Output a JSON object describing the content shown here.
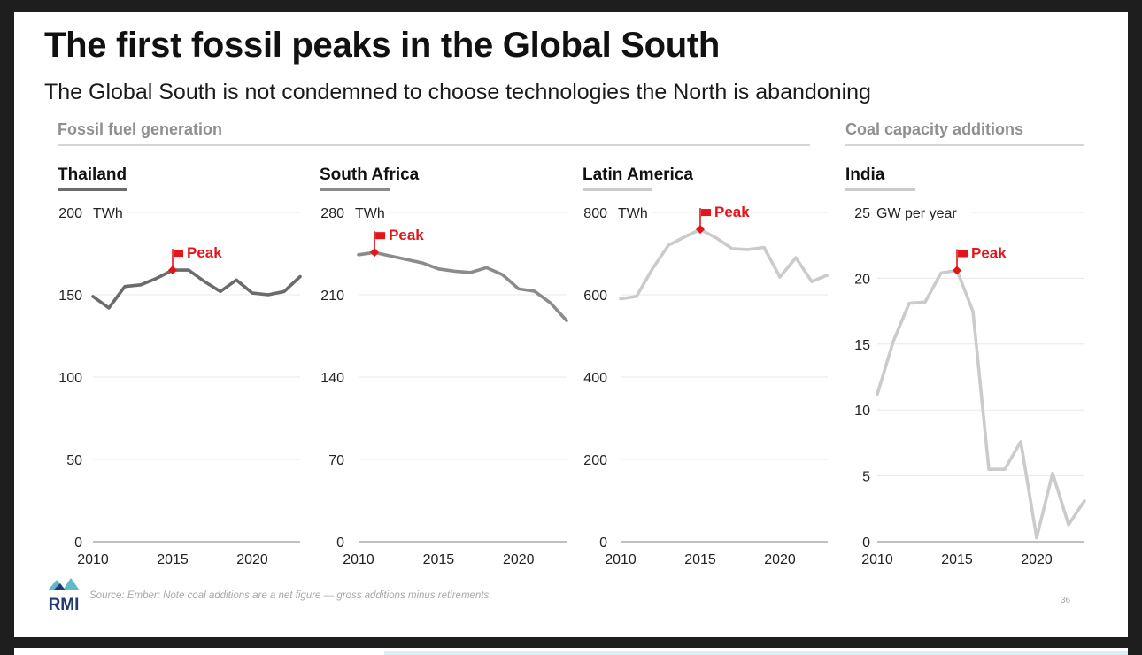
{
  "title": "The first fossil peaks in the Global South",
  "subtitle": "The Global South is not condemned to choose technologies the North is abandoning",
  "sections": {
    "fossil": "Fossil fuel generation",
    "coal": "Coal capacity additions"
  },
  "source": "Source: Ember; Note coal additions are a net figure — gross additions minus retirements.",
  "page_number": "36",
  "logo_text": "RMI",
  "colors": {
    "peak": "#e3151b",
    "dark": "#6b6b6b",
    "mid": "#8b8b8b",
    "light": "#cbcbcb",
    "grid": "#e8e8e8",
    "axis": "#9a9a9a"
  },
  "chart_data": [
    {
      "type": "line",
      "title": "Thailand",
      "unit": "TWh",
      "color": "#6b6b6b",
      "x": [
        2010,
        2011,
        2012,
        2013,
        2014,
        2015,
        2016,
        2017,
        2018,
        2019,
        2020,
        2021,
        2022,
        2023
      ],
      "values": [
        149,
        142,
        155,
        156,
        160,
        165,
        165,
        158,
        152,
        159,
        151,
        150,
        152,
        161
      ],
      "ylim": [
        0,
        200
      ],
      "yticks": [
        0,
        50,
        100,
        150,
        200
      ],
      "xticks": [
        2010,
        2015,
        2020
      ],
      "peak": {
        "x": 2015,
        "y": 165,
        "label": "Peak"
      }
    },
    {
      "type": "line",
      "title": "South Africa",
      "unit": "TWh",
      "color": "#8b8b8b",
      "x": [
        2010,
        2011,
        2012,
        2013,
        2014,
        2015,
        2016,
        2017,
        2018,
        2019,
        2020,
        2021,
        2022,
        2023
      ],
      "values": [
        244,
        246,
        243,
        240,
        237,
        232,
        230,
        229,
        233,
        227,
        215,
        213,
        203,
        188
      ],
      "ylim": [
        0,
        280
      ],
      "yticks": [
        0,
        70,
        140,
        210,
        280
      ],
      "xticks": [
        2010,
        2015,
        2020
      ],
      "peak": {
        "x": 2011,
        "y": 246,
        "label": "Peak"
      }
    },
    {
      "type": "line",
      "title": "Latin America",
      "unit": "TWh",
      "color": "#cbcbcb",
      "x": [
        2010,
        2011,
        2012,
        2013,
        2014,
        2015,
        2016,
        2017,
        2018,
        2019,
        2020,
        2021,
        2022,
        2023
      ],
      "values": [
        590,
        596,
        663,
        720,
        740,
        759,
        738,
        712,
        710,
        715,
        643,
        690,
        632,
        648
      ],
      "ylim": [
        0,
        800
      ],
      "yticks": [
        0,
        200,
        400,
        600,
        800
      ],
      "xticks": [
        2010,
        2015,
        2020
      ],
      "peak": {
        "x": 2015,
        "y": 759,
        "label": "Peak"
      }
    },
    {
      "type": "line",
      "title": "India",
      "unit": "GW per year",
      "color": "#cbcbcb",
      "x": [
        2010,
        2011,
        2012,
        2013,
        2014,
        2015,
        2016,
        2017,
        2018,
        2019,
        2020,
        2021,
        2022,
        2023
      ],
      "values": [
        11.2,
        15.2,
        18.1,
        18.2,
        20.4,
        20.6,
        17.5,
        5.5,
        5.5,
        7.6,
        0.3,
        5.2,
        1.3,
        3.1
      ],
      "ylim": [
        0,
        25
      ],
      "yticks": [
        0,
        5,
        10,
        15,
        20,
        25
      ],
      "xticks": [
        2010,
        2015,
        2020
      ],
      "peak": {
        "x": 2015,
        "y": 20.6,
        "label": "Peak"
      }
    }
  ]
}
